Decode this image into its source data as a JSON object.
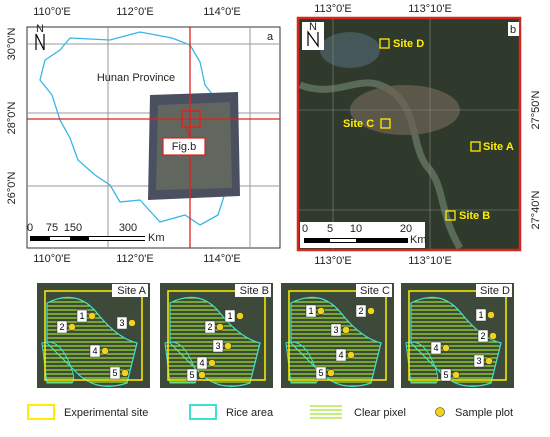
{
  "panel_a": {
    "label": "a",
    "north": "N",
    "region": "Hunan Province",
    "inset": "Fig.b",
    "top_ticks": [
      "110°0'E",
      "112°0'E",
      "114°0'E"
    ],
    "bottom_ticks": [
      "110°0'E",
      "112°0'E",
      "114°0'E"
    ],
    "left_ticks": [
      "30°0'N",
      "28°0'N",
      "26°0'N"
    ],
    "scale": [
      0,
      75,
      150,
      300
    ],
    "scale_unit": "Km"
  },
  "panel_b": {
    "label": "b",
    "north": "N",
    "top_ticks": [
      "113°0'E",
      "113°10'E"
    ],
    "bottom_ticks": [
      "113°0'E",
      "113°10'E"
    ],
    "right_ticks": [
      "27°50'N",
      "27°40'N"
    ],
    "sites": [
      "Site D",
      "Site C",
      "Site A",
      "Site B"
    ],
    "scale": [
      0,
      5,
      10,
      20
    ],
    "scale_unit": "Km"
  },
  "site_panels": [
    {
      "title": "Site A",
      "plots": [
        1,
        2,
        3,
        4,
        5
      ]
    },
    {
      "title": "Site B",
      "plots": [
        1,
        2,
        3,
        4,
        5
      ]
    },
    {
      "title": "Site C",
      "plots": [
        1,
        2,
        3,
        4,
        5
      ]
    },
    {
      "title": "Site D",
      "plots": [
        1,
        2,
        3,
        4,
        5
      ]
    }
  ],
  "legend": [
    "Experimental site",
    "Rice area",
    "Clear pixel",
    "Sample plot"
  ]
}
